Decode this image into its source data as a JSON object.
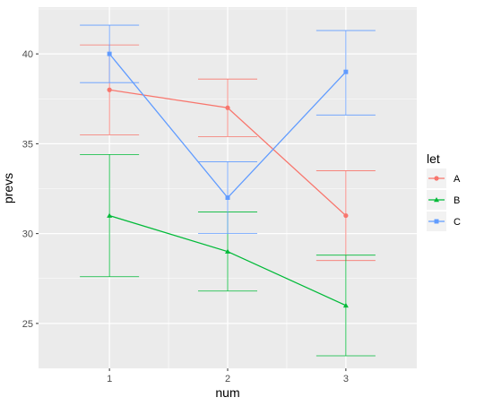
{
  "chart_data": {
    "type": "line",
    "title": "",
    "xlabel": "num",
    "ylabel": "prevs",
    "x": [
      1,
      2,
      3
    ],
    "xlim": [
      0.4,
      3.6
    ],
    "ylim": [
      22.5,
      42.6
    ],
    "xticks": [
      1,
      2,
      3
    ],
    "yticks": [
      25,
      30,
      35,
      40
    ],
    "grid": true,
    "legend": {
      "title": "let",
      "placement": "right"
    },
    "series": [
      {
        "name": "A",
        "color": "#F8766D",
        "marker": "circle",
        "values": [
          38,
          37,
          31
        ],
        "error_low": [
          35.5,
          35.4,
          28.5
        ],
        "error_high": [
          40.5,
          38.6,
          33.5
        ]
      },
      {
        "name": "B",
        "color": "#00BA38",
        "marker": "triangle",
        "values": [
          31,
          29,
          26
        ],
        "error_low": [
          27.6,
          26.8,
          23.2
        ],
        "error_high": [
          34.4,
          31.2,
          28.8
        ]
      },
      {
        "name": "C",
        "color": "#619CFF",
        "marker": "square",
        "values": [
          40,
          32,
          39
        ],
        "error_low": [
          38.4,
          30.0,
          36.6
        ],
        "error_high": [
          41.6,
          34.0,
          41.3
        ]
      }
    ]
  }
}
